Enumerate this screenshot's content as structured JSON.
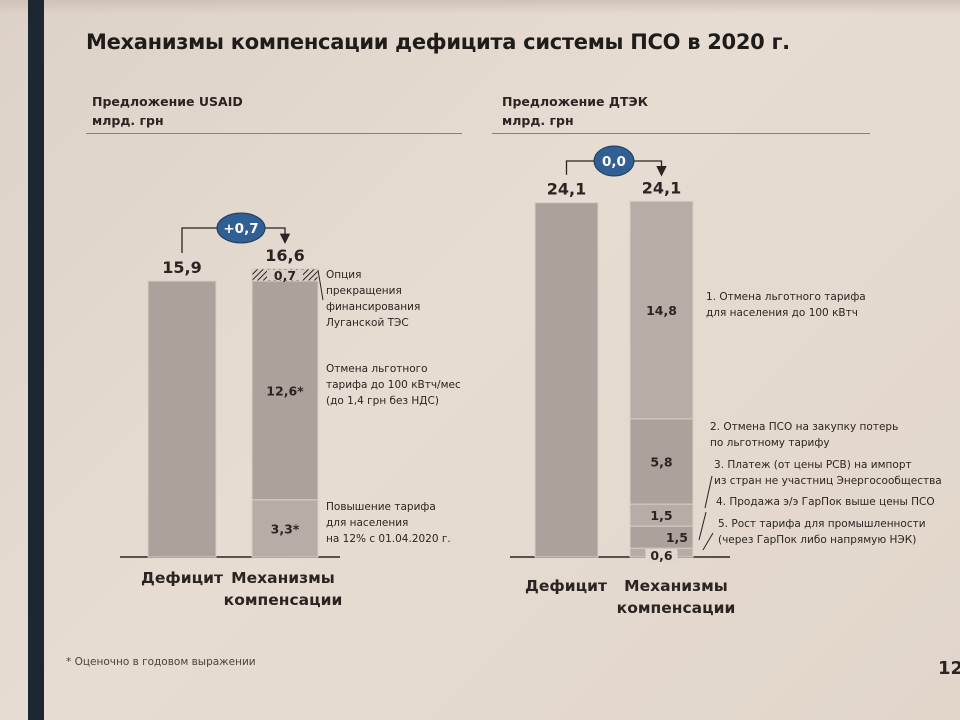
{
  "title": "Механизмы компенсации дефицита системы ПСО в 2020 г.",
  "footnote": "* Оценочно в годовом выражении",
  "page_number": "12",
  "colors": {
    "bar": "#b8ada6",
    "bar_dark": "#ada29b",
    "badge": "#2f5f93",
    "spine": "#1d2733"
  },
  "chart_data": [
    {
      "type": "bar",
      "title": "Предложение USAID",
      "unit": "млрд. грн",
      "categories": [
        "Дефицит",
        "Механизмы компенсации"
      ],
      "totals": [
        "15,9",
        "16,6"
      ],
      "total_values": [
        15.9,
        16.6
      ],
      "difference_badge": "+0,7",
      "series": [
        {
          "category": "Дефицит",
          "value": 15.9,
          "label": ""
        },
        {
          "category": "Механизмы компенсации",
          "value": 3.3,
          "label": "3,3*",
          "annotation": [
            "Повышение тарифа",
            "для населения",
            "на 12% с 01.04.2020 г."
          ]
        },
        {
          "category": "Механизмы компенсации",
          "value": 12.6,
          "label": "12,6*",
          "annotation": [
            "Отмена льготного",
            "тарифа до 100 кВтч/мес",
            "(до 1,4 грн без НДС)"
          ]
        },
        {
          "category": "Механизмы компенсации",
          "value": 0.7,
          "label": "0,7",
          "hatched": true,
          "annotation": [
            "Опция",
            "прекращения",
            "финансирования",
            "Луганской ТЭС"
          ]
        }
      ]
    },
    {
      "type": "bar",
      "title": "Предложение ДТЭК",
      "unit": "млрд. грн",
      "categories": [
        "Дефицит",
        "Механизмы компенсации"
      ],
      "totals": [
        "24,1",
        "24,1"
      ],
      "total_values": [
        24.1,
        24.1
      ],
      "difference_badge": "0,0",
      "series": [
        {
          "category": "Дефицит",
          "value": 24.1,
          "label": ""
        },
        {
          "category": "Механизмы компенсации",
          "value": 0.6,
          "label": "0,6",
          "annotation": [
            "5. Рост тарифа для промышленности",
            "(через ГарПок либо напрямую НЭК)"
          ]
        },
        {
          "category": "Механизмы компенсации",
          "value": 1.5,
          "label": "1,5",
          "annotation": [
            "4. Продажа э/э ГарПок выше цены ПСО"
          ]
        },
        {
          "category": "Механизмы компенсации",
          "value": 1.5,
          "label": "1,5",
          "annotation": [
            "3. Платеж (от цены РСВ) на импорт",
            "из стран не участниц Энергосообщества"
          ]
        },
        {
          "category": "Механизмы компенсации",
          "value": 5.8,
          "label": "5,8",
          "annotation": [
            "2. Отмена ПСО на закупку потерь",
            "по льготному тарифу"
          ]
        },
        {
          "category": "Механизмы компенсации",
          "value": 14.8,
          "label": "14,8",
          "annotation": [
            "1. Отмена льготного тарифа",
            "для населения до 100 кВтч"
          ]
        }
      ]
    }
  ]
}
